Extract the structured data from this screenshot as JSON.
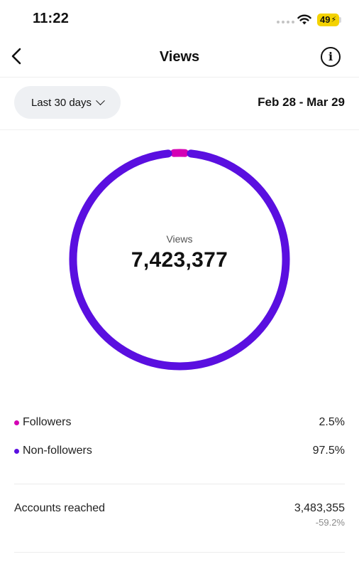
{
  "status_bar": {
    "time": "11:22",
    "battery": "49"
  },
  "nav": {
    "title": "Views",
    "info_glyph": "i"
  },
  "filter": {
    "range_label": "Last 30 days",
    "date_range": "Feb 28 - Mar 29"
  },
  "summary": {
    "label": "Views",
    "total": "7,423,377"
  },
  "chart_data": {
    "type": "pie",
    "style": "donut",
    "categories": [
      "Followers",
      "Non-followers"
    ],
    "values": [
      2.5,
      97.5
    ],
    "colors": [
      "#d400b4",
      "#5a0fe0"
    ]
  },
  "breakdown": [
    {
      "name": "Followers",
      "percent": "2.5%",
      "color": "#d400b4"
    },
    {
      "name": "Non-followers",
      "percent": "97.5%",
      "color": "#5a0fe0"
    }
  ],
  "accounts_reached": {
    "label": "Accounts reached",
    "value": "3,483,355",
    "change": "-59.2%"
  },
  "icons": {
    "back": "chevron-left-icon",
    "info": "info-icon",
    "dropdown": "chevron-down-icon",
    "wifi": "wifi-icon"
  }
}
